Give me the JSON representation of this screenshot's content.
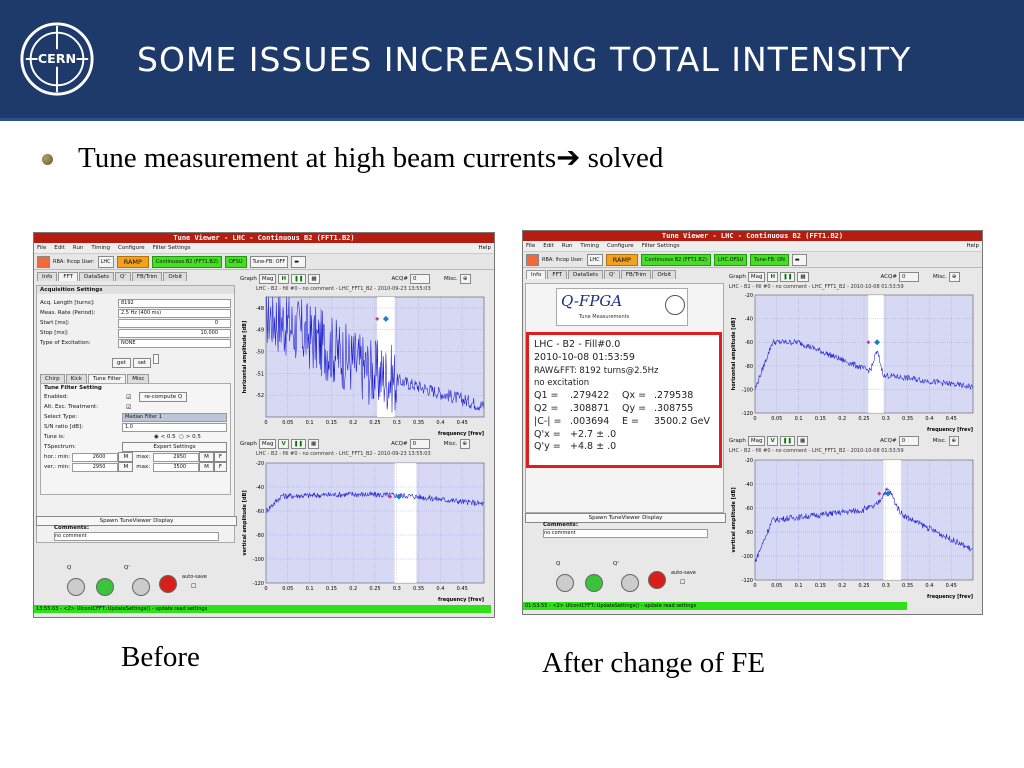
{
  "slide": {
    "title": "Some issues increasing total intensity",
    "logo_text": "CERN",
    "bullet": "Tune measurement at high beam currents",
    "bullet_arrow": "➔",
    "bullet_suffix": " solved",
    "caption_left": "Before",
    "caption_right": "After change of FE"
  },
  "left_window": {
    "title": "Tune Viewer - LHC - Continuous B2 (FFT1.B2)",
    "menu": [
      "File",
      "Edit",
      "Run",
      "Timing",
      "Configure",
      "Filter Settings"
    ],
    "menu_help": "Help",
    "rba": "RBA: lhcop User:",
    "lhc": "LHC",
    "ramp": "RAMP",
    "continuous": "Continuous B2 (FFT1.B2)",
    "ofsu": "OFSU",
    "tune_fb": "Tune-FB: OFF",
    "tabs": [
      "Info",
      "FFT",
      "DataSets",
      "Q'",
      "FB/Trim",
      "Orbit"
    ],
    "acq_title": "Acquisition Settings",
    "fields": [
      {
        "label": "Acq. Length [turns]:",
        "value": "8192"
      },
      {
        "label": "Meas. Rate (Period):",
        "value": "2.5 Hz (400 ms)"
      },
      {
        "label": "Start [ms]:",
        "value": "0"
      },
      {
        "label": "Stop [ms]:",
        "value": "10,000"
      },
      {
        "label": "Type of Excitation:",
        "value": "NONE"
      }
    ],
    "get": "get",
    "set": "set",
    "subtabs": [
      "Chirp",
      "Kick",
      "Tune Filter",
      "Misc"
    ],
    "tf_title": "Tune Filter Setting",
    "enabled": "Enabled:",
    "recompute": "re-compute Q",
    "alt_exc": "Alt. Exc. Treatment:",
    "select_type": "Select Type:",
    "select_type_val": "Median Filter 1",
    "sn_ratio": "S/N ratio [dB]:",
    "sn_val": "1.0",
    "tune_is": "Tune is:",
    "tune_lt": "< 0.5",
    "tune_gt": "> 0.5",
    "tspectrum": "TSpectrum:",
    "expert": "Expert Settings",
    "hor": "hor.: min:",
    "hor_min": "2600",
    "hor_max": "2950",
    "ver": "ver.: min:",
    "ver_min": "2950",
    "ver_max": "3500",
    "max": "max:",
    "spawn": "Spawn TuneViewer Display",
    "comments": "Comments:",
    "no_comment": "no comment",
    "q": "Q",
    "qp": "Q'",
    "autosave": "auto-save",
    "status": "13:55:03 - <2> UIcontCFFT::UpdateSettings() - update read settings",
    "plot1_sub": "LHC - B2 - fill #0 - no comment - LHC_FFT1_B2 - 2010-09-23 13:55:03",
    "plot2_sub": "LHC - B2 - fill #0 - no comment - LHC_FFT1_B2 - 2010-09-23 13:55:03",
    "graph": "Graph",
    "mag": "Mag",
    "acq": "ACQ#",
    "acq_val": "0",
    "misc": "Misc.",
    "h_btn": "H",
    "v_btn": "V"
  },
  "right_window": {
    "title": "Tune Viewer - LHC - Continuous B2 (FFT1.B2)",
    "menu": [
      "File",
      "Edit",
      "Run",
      "Timing",
      "Configure",
      "Filter Settings"
    ],
    "menu_help": "Help",
    "rba": "RBA: lhcop User:",
    "lhc": "LHC",
    "ramp": "RAMP",
    "continuous": "Continuous B2 (FFT1.B2)",
    "ofsu": "LHC.OFSU",
    "tune_fb": "Tune-FB: ON",
    "tabs": [
      "Info",
      "FFT",
      "DataSets",
      "Q'",
      "FB/Trim",
      "Orbit"
    ],
    "qfpga": "Q-FPGA",
    "qfpga_sub": "Tune Measurements",
    "info_lines": [
      "LHC - B2 - Fill#0.0",
      "2010-10-08 01:53:59",
      "RAW&FFT: 8192 turns@2.5Hz",
      "no excitation"
    ],
    "q_rows": [
      [
        "Q1 =",
        ".279422",
        "Qx =",
        ".279538"
      ],
      [
        "Q2 =",
        ".308871",
        "Qy =",
        ".308755"
      ],
      [
        "|C-| =",
        ".003694",
        "E =",
        "3500.2 GeV"
      ]
    ],
    "qprime_rows": [
      [
        "Q'x =",
        "+2.7 ± .0"
      ],
      [
        "Q'y =",
        "+4.8 ± .0"
      ]
    ],
    "spawn": "Spawn TuneViewer Display",
    "comments": "Comments:",
    "no_comment": "no comment",
    "q": "Q",
    "qp": "Q'",
    "autosave": "auto-save",
    "status": "01:53:55 - <2> UIcontCFFT::UpdateSettings() - update read settings",
    "plot1_sub": "LHC - B2 - fill #0 - no comment - LHC_FFT1_B2 - 2010-10-08 01:53:59",
    "plot2_sub": "LHC - B2 - fill #0 - no comment - LHC_FFT1_B2 - 2010-10-08 01:53:59",
    "graph": "Graph",
    "mag": "Mag",
    "acq": "ACQ#",
    "acq_val": "0",
    "misc": "Misc.",
    "h_btn": "H",
    "v_btn": "V"
  },
  "chart_data": [
    {
      "type": "line",
      "id": "left_h",
      "ylabel": "horizontal amplitude [dB]",
      "xlabel": "frequency [frev]",
      "xlim": [
        0,
        0.5
      ],
      "ylim": [
        -53,
        -47.5
      ],
      "yticks": [
        -48,
        -49,
        -50,
        -51,
        -52
      ],
      "xticks": [
        0,
        0.05,
        0.1,
        0.15,
        0.2,
        0.25,
        0.3,
        0.35,
        0.4,
        0.45
      ],
      "tune_marker": [
        0.275,
        -48.5
      ],
      "window": [
        0.255,
        0.295
      ]
    },
    {
      "type": "line",
      "id": "left_v",
      "ylabel": "vertical amplitude [dB]",
      "xlabel": "frequency [frev]",
      "xlim": [
        0,
        0.5
      ],
      "ylim": [
        -120,
        -20
      ],
      "yticks": [
        -20,
        -40,
        -60,
        -80,
        -100,
        -120
      ],
      "xticks": [
        0,
        0.05,
        0.1,
        0.15,
        0.2,
        0.25,
        0.3,
        0.35,
        0.4,
        0.45
      ],
      "tune_marker": [
        0.305,
        -48
      ],
      "window": [
        0.295,
        0.345
      ]
    },
    {
      "type": "line",
      "id": "right_h",
      "ylabel": "horizontal amplitude [dB]",
      "xlabel": "frequency [frev]",
      "xlim": [
        0,
        0.5
      ],
      "ylim": [
        -120,
        -20
      ],
      "yticks": [
        -20,
        -40,
        -60,
        -80,
        -100,
        -120
      ],
      "xticks": [
        0,
        0.05,
        0.1,
        0.15,
        0.2,
        0.25,
        0.3,
        0.35,
        0.4,
        0.45
      ],
      "tune_marker": [
        0.28,
        -60
      ],
      "window": [
        0.26,
        0.295
      ]
    },
    {
      "type": "line",
      "id": "right_v",
      "ylabel": "vertical amplitude [dB]",
      "xlabel": "frequency [frev]",
      "xlim": [
        0,
        0.5
      ],
      "ylim": [
        -120,
        -20
      ],
      "yticks": [
        -20,
        -40,
        -60,
        -80,
        -100,
        -120
      ],
      "xticks": [
        0,
        0.05,
        0.1,
        0.15,
        0.2,
        0.25,
        0.3,
        0.35,
        0.4,
        0.45
      ],
      "tune_marker": [
        0.305,
        -48
      ],
      "window": [
        0.295,
        0.335
      ]
    }
  ]
}
